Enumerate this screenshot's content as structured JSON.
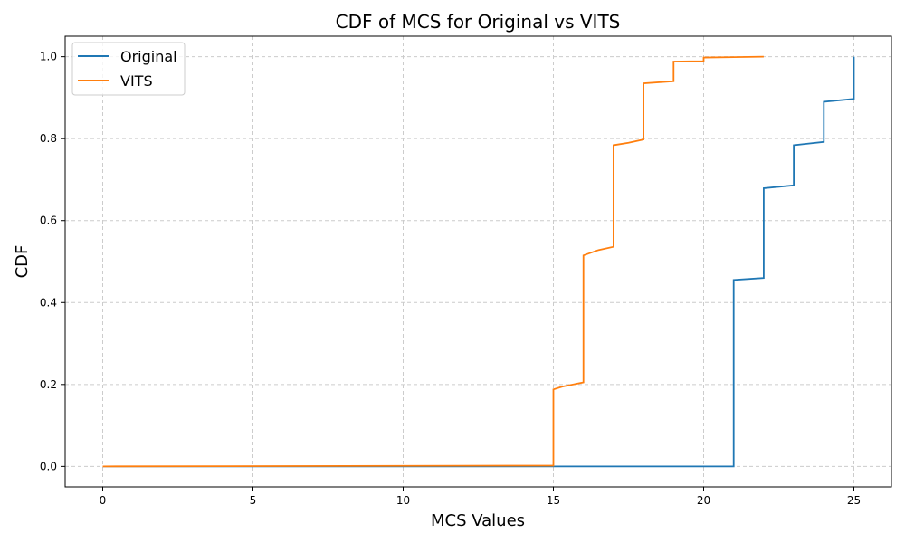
{
  "chart_data": {
    "type": "line",
    "step": "post",
    "title": "CDF of MCS for Original vs VITS",
    "xlabel": "MCS Values",
    "ylabel": "CDF",
    "xlim": [
      -1.25,
      26.25
    ],
    "ylim": [
      -0.05,
      1.05
    ],
    "xticks": [
      0,
      5,
      10,
      15,
      20,
      25
    ],
    "xtick_labels": [
      "0",
      "5",
      "10",
      "15",
      "20",
      "25"
    ],
    "yticks": [
      0.0,
      0.2,
      0.4,
      0.6,
      0.8,
      1.0
    ],
    "ytick_labels": [
      "0.0",
      "0.2",
      "0.4",
      "0.6",
      "0.8",
      "1.0"
    ],
    "grid": true,
    "legend_position": "top-left",
    "series": [
      {
        "name": "Original",
        "color": "#1f77b4",
        "points": [
          [
            0,
            0.0
          ],
          [
            21,
            0.0
          ],
          [
            21,
            0.455
          ],
          [
            22,
            0.46
          ],
          [
            22,
            0.679
          ],
          [
            23,
            0.686
          ],
          [
            23,
            0.784
          ],
          [
            24,
            0.792
          ],
          [
            24,
            0.89
          ],
          [
            25,
            0.897
          ],
          [
            25,
            1.0
          ]
        ]
      },
      {
        "name": "VITS",
        "color": "#ff7f0e",
        "points": [
          [
            0,
            0.0
          ],
          [
            15,
            0.002
          ],
          [
            15,
            0.188
          ],
          [
            15.3,
            0.195
          ],
          [
            16,
            0.205
          ],
          [
            16,
            0.515
          ],
          [
            16.5,
            0.528
          ],
          [
            17,
            0.536
          ],
          [
            17,
            0.784
          ],
          [
            17.5,
            0.79
          ],
          [
            18,
            0.798
          ],
          [
            18,
            0.935
          ],
          [
            19,
            0.94
          ],
          [
            19,
            0.988
          ],
          [
            20,
            0.989
          ],
          [
            20,
            0.998
          ],
          [
            21,
            0.999
          ],
          [
            22,
            1.0
          ]
        ]
      }
    ]
  }
}
